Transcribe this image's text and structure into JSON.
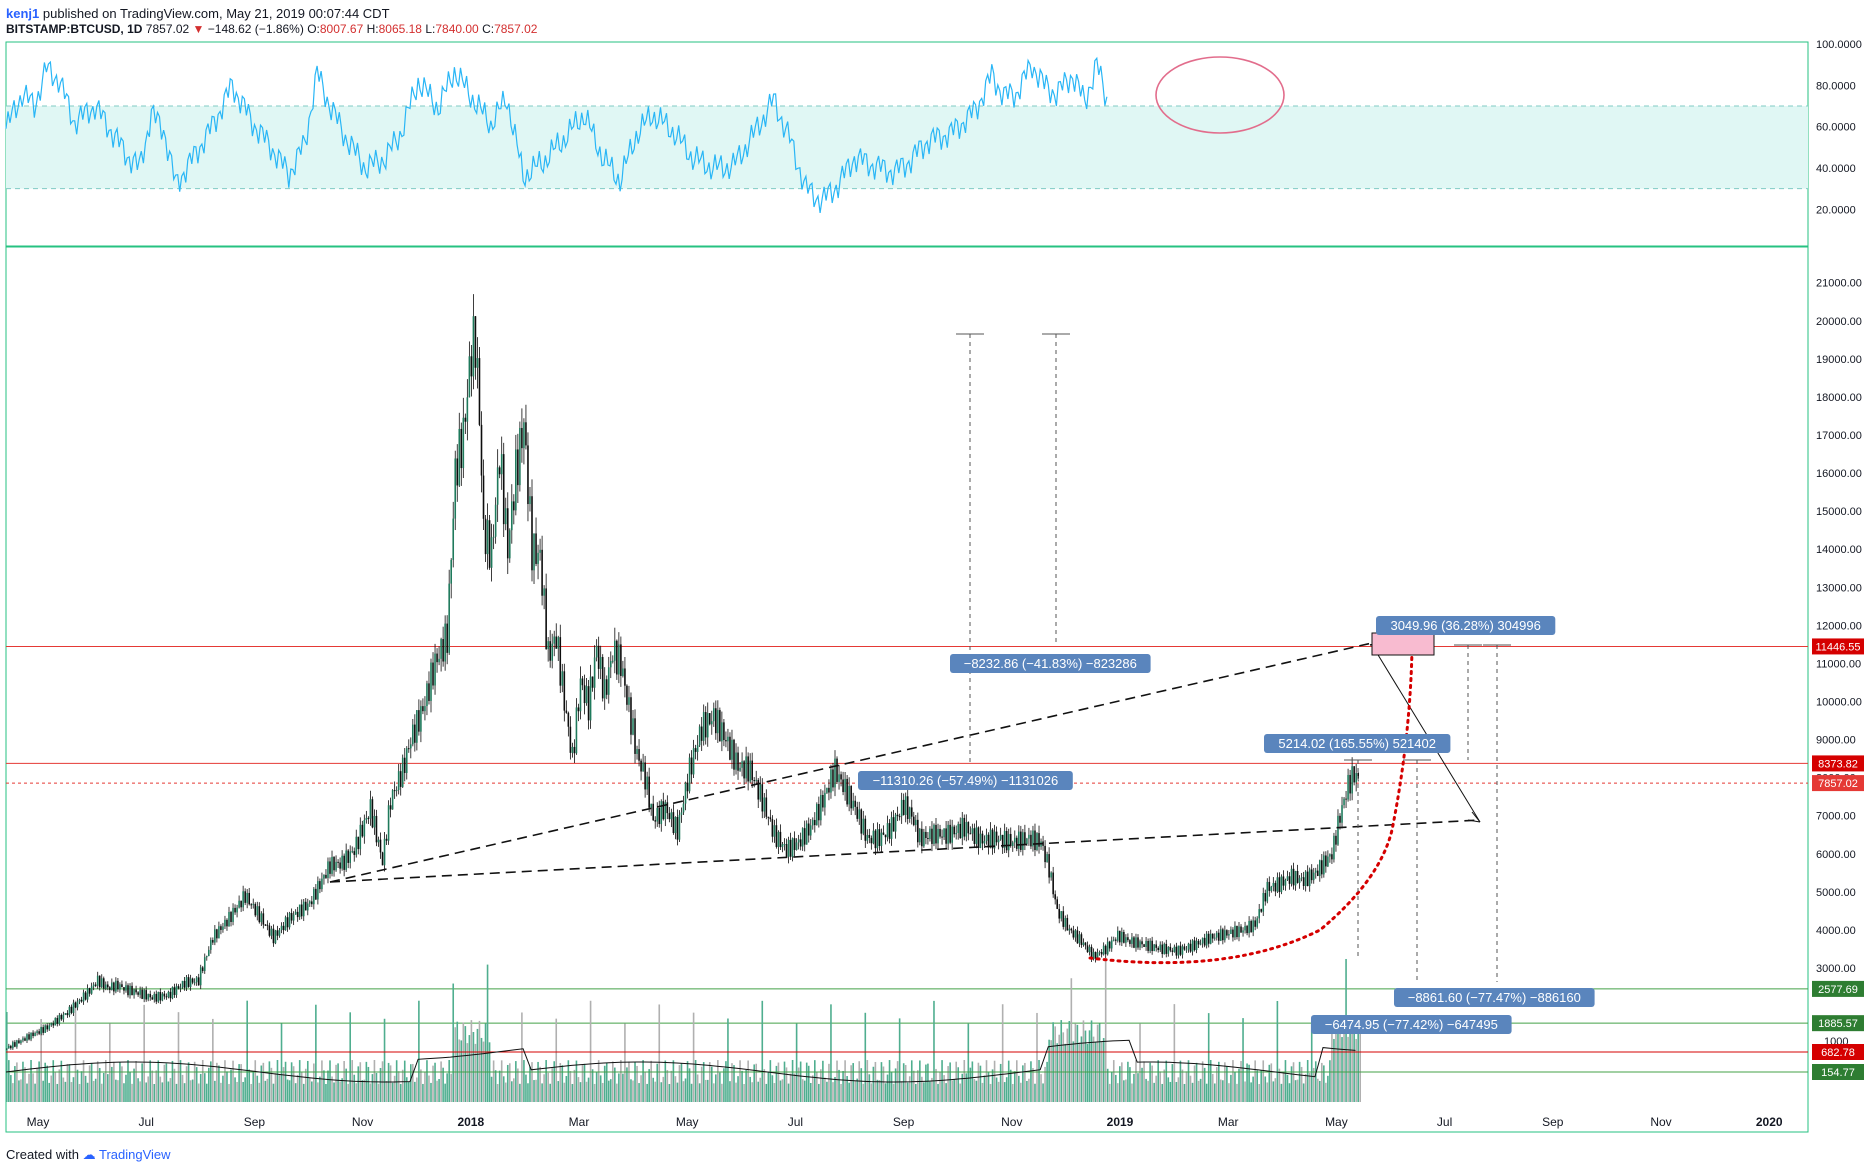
{
  "header": {
    "user": "kenj1",
    "published_text": "published on TradingView.com, May 21, 2019 00:07:44 CDT",
    "symbol": "BITSTAMP:BTCUSD, 1D",
    "last": "7857.02",
    "change": "−148.62 (−1.86%)",
    "o_label": "O:",
    "o": "8007.67",
    "h_label": "H:",
    "h": "8065.18",
    "l_label": "L:",
    "l": "7840.00",
    "c_label": "C:",
    "c": "7857.02"
  },
  "footer": {
    "created_with": "Created with",
    "brand": "TradingView"
  },
  "colors": {
    "rsi_line": "#29b6f6",
    "rsi_band": "#e0f7f4",
    "pane_border": "#26c281",
    "candle": "#0d0d0d",
    "vol_up": "#4fae8f",
    "vol_down": "#b0b0b0",
    "red_line": "#e53935",
    "green_line": "#43a047",
    "label_blue": "#5a85bd"
  },
  "chart_data": [
    {
      "type": "line",
      "name": "RSI pane",
      "y_ticks": [
        "100.0000",
        "80.0000",
        "60.0000",
        "40.0000",
        "20.0000"
      ],
      "ylim": [
        0,
        100
      ],
      "band": [
        30,
        70
      ],
      "points": [
        [
          0,
          59
        ],
        [
          8,
          76
        ],
        [
          14,
          70
        ],
        [
          20,
          88
        ],
        [
          26,
          83
        ],
        [
          34,
          62
        ],
        [
          44,
          70
        ],
        [
          52,
          58
        ],
        [
          60,
          46
        ],
        [
          66,
          40
        ],
        [
          72,
          66
        ],
        [
          78,
          59
        ],
        [
          84,
          32
        ],
        [
          92,
          44
        ],
        [
          102,
          60
        ],
        [
          112,
          80
        ],
        [
          122,
          62
        ],
        [
          132,
          49
        ],
        [
          140,
          37
        ],
        [
          148,
          52
        ],
        [
          154,
          86
        ],
        [
          160,
          71
        ],
        [
          168,
          55
        ],
        [
          178,
          40
        ],
        [
          188,
          45
        ],
        [
          196,
          58
        ],
        [
          204,
          82
        ],
        [
          214,
          69
        ],
        [
          222,
          87
        ],
        [
          230,
          75
        ],
        [
          240,
          61
        ],
        [
          248,
          74
        ],
        [
          256,
          36
        ],
        [
          266,
          43
        ],
        [
          278,
          56
        ],
        [
          286,
          66
        ],
        [
          296,
          44
        ],
        [
          304,
          34
        ],
        [
          312,
          56
        ],
        [
          320,
          66
        ],
        [
          330,
          58
        ],
        [
          340,
          45
        ],
        [
          350,
          40
        ],
        [
          360,
          41
        ],
        [
          370,
          56
        ],
        [
          380,
          73
        ],
        [
          388,
          54
        ],
        [
          396,
          30
        ],
        [
          404,
          24
        ],
        [
          412,
          32
        ],
        [
          420,
          45
        ],
        [
          430,
          41
        ],
        [
          440,
          38
        ],
        [
          448,
          44
        ],
        [
          456,
          53
        ],
        [
          468,
          57
        ],
        [
          480,
          68
        ],
        [
          488,
          85
        ],
        [
          494,
          75
        ],
        [
          500,
          76
        ],
        [
          508,
          90
        ],
        [
          514,
          80
        ],
        [
          520,
          76
        ],
        [
          528,
          85
        ],
        [
          534,
          72
        ],
        [
          540,
          90
        ],
        [
          546,
          70
        ]
      ]
    },
    {
      "type": "candlestick",
      "name": "BTCUSD 1D",
      "y_ticks": [
        "21000.00",
        "20000.00",
        "19000.00",
        "18000.00",
        "17000.00",
        "16000.00",
        "15000.00",
        "14000.00",
        "13000.00",
        "12000.00",
        "11000.00",
        "10000.00",
        "9000.00",
        "8000.00",
        "7000.00",
        "6000.00",
        "5000.00",
        "4000.00",
        "3000.00"
      ],
      "x_ticks": [
        "May",
        "Jul",
        "Sep",
        "Nov",
        "2018",
        "Mar",
        "May",
        "Jul",
        "Sep",
        "Nov",
        "2019",
        "Mar",
        "May",
        "Jul",
        "Sep",
        "Nov",
        "2020"
      ],
      "close": [
        [
          0,
          1380
        ],
        [
          10,
          1600
        ],
        [
          20,
          1800
        ],
        [
          30,
          2100
        ],
        [
          40,
          2500
        ],
        [
          45,
          2750
        ],
        [
          50,
          2600
        ],
        [
          55,
          2650
        ],
        [
          60,
          2550
        ],
        [
          65,
          2500
        ],
        [
          72,
          2400
        ],
        [
          80,
          2450
        ],
        [
          88,
          2700
        ],
        [
          95,
          2750
        ],
        [
          102,
          3800
        ],
        [
          110,
          4300
        ],
        [
          118,
          4900
        ],
        [
          126,
          4300
        ],
        [
          132,
          3800
        ],
        [
          140,
          4300
        ],
        [
          150,
          4700
        ],
        [
          160,
          5700
        ],
        [
          166,
          5750
        ],
        [
          172,
          6100
        ],
        [
          180,
          7200
        ],
        [
          186,
          5800
        ],
        [
          190,
          7400
        ],
        [
          196,
          8200
        ],
        [
          200,
          9000
        ],
        [
          206,
          9800
        ],
        [
          212,
          11000
        ],
        [
          218,
          11700
        ],
        [
          222,
          16000
        ],
        [
          226,
          17000
        ],
        [
          230,
          19200
        ],
        [
          232,
          19500
        ],
        [
          234,
          17500
        ],
        [
          236,
          14500
        ],
        [
          240,
          13900
        ],
        [
          244,
          16500
        ],
        [
          248,
          14000
        ],
        [
          252,
          16000
        ],
        [
          256,
          17300
        ],
        [
          260,
          14000
        ],
        [
          264,
          13800
        ],
        [
          268,
          11200
        ],
        [
          272,
          11700
        ],
        [
          276,
          10000
        ],
        [
          280,
          8500
        ],
        [
          284,
          10500
        ],
        [
          288,
          9900
        ],
        [
          292,
          11400
        ],
        [
          296,
          10200
        ],
        [
          300,
          11300
        ],
        [
          304,
          11000
        ],
        [
          308,
          9800
        ],
        [
          312,
          8600
        ],
        [
          316,
          8000
        ],
        [
          320,
          6900
        ],
        [
          326,
          7200
        ],
        [
          332,
          6600
        ],
        [
          338,
          8200
        ],
        [
          344,
          9300
        ],
        [
          350,
          9600
        ],
        [
          356,
          9000
        ],
        [
          362,
          8300
        ],
        [
          368,
          8200
        ],
        [
          374,
          7400
        ],
        [
          380,
          6500
        ],
        [
          386,
          6100
        ],
        [
          392,
          6300
        ],
        [
          398,
          6700
        ],
        [
          404,
          7400
        ],
        [
          410,
          8200
        ],
        [
          414,
          7800
        ],
        [
          420,
          7200
        ],
        [
          426,
          6400
        ],
        [
          432,
          6400
        ],
        [
          438,
          6700
        ],
        [
          444,
          7300
        ],
        [
          448,
          7000
        ],
        [
          452,
          6400
        ],
        [
          458,
          6500
        ],
        [
          466,
          6500
        ],
        [
          474,
          6700
        ],
        [
          482,
          6350
        ],
        [
          490,
          6400
        ],
        [
          498,
          6300
        ],
        [
          506,
          6400
        ],
        [
          512,
          6300
        ],
        [
          516,
          5600
        ],
        [
          520,
          4500
        ],
        [
          526,
          4000
        ],
        [
          532,
          3700
        ],
        [
          538,
          3300
        ],
        [
          544,
          3500
        ],
        [
          550,
          3850
        ],
        [
          556,
          3700
        ],
        [
          564,
          3600
        ],
        [
          572,
          3500
        ],
        [
          580,
          3450
        ],
        [
          588,
          3600
        ],
        [
          596,
          3800
        ],
        [
          604,
          3900
        ],
        [
          612,
          4000
        ],
        [
          618,
          4150
        ],
        [
          624,
          5100
        ],
        [
          630,
          5200
        ],
        [
          636,
          5400
        ],
        [
          642,
          5300
        ],
        [
          648,
          5500
        ],
        [
          652,
          5750
        ],
        [
          656,
          6000
        ],
        [
          660,
          7000
        ],
        [
          664,
          7800
        ],
        [
          667,
          8100
        ],
        [
          670,
          7857
        ]
      ],
      "price_labels": [
        {
          "value": 11446.55,
          "text": "11446.55",
          "color": "#d50000"
        },
        {
          "value": 8373.82,
          "text": "8373.82",
          "color": "#d50000"
        },
        {
          "value": 7857.02,
          "text": "7857.02",
          "color": "#e53935"
        },
        {
          "value": 2577.69,
          "text": "2577.69",
          "color": "#2e7d32"
        },
        {
          "value": 1885.57,
          "text": "1885.57",
          "color": "#2e7d32"
        },
        {
          "value": 682.78,
          "text": "682.78",
          "color": "#d50000"
        },
        {
          "value": 154.77,
          "text": "154.77",
          "color": "#2e7d32"
        }
      ],
      "annotations": [
        {
          "text": "3049.96 (36.28%) 304996"
        },
        {
          "text": "−8232.86 (−41.83%) −823286"
        },
        {
          "text": "5214.02 (165.55%) 521402"
        },
        {
          "text": "−11310.26 (−57.49%) −1131026"
        },
        {
          "text": "−8861.60 (−77.47%) −886160"
        },
        {
          "text": "−6474.95 (−77.42%) −647495"
        }
      ]
    },
    {
      "type": "bar",
      "name": "Volume",
      "y_ticks": [
        "1000"
      ]
    }
  ]
}
